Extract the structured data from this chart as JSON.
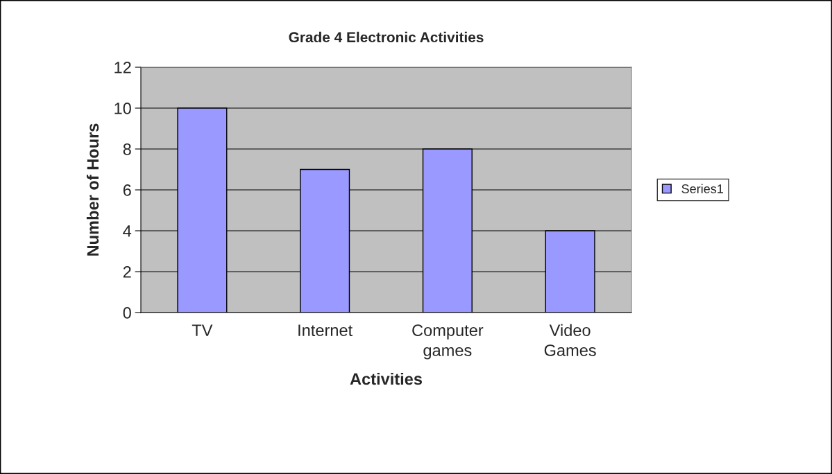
{
  "chart_data": {
    "type": "bar",
    "title": "Grade 4 Electronic Activities",
    "xlabel": "Activities",
    "ylabel": "Number of Hours",
    "categories": [
      "TV",
      "Internet",
      "Computer games",
      "Video Games"
    ],
    "series": [
      {
        "name": "Series1",
        "color": "#9999ff",
        "values": [
          10,
          7,
          8,
          4
        ]
      }
    ],
    "ylim": [
      0,
      12
    ],
    "yticks": [
      0,
      2,
      4,
      6,
      8,
      10,
      12
    ],
    "grid": "y",
    "legend": "right"
  }
}
